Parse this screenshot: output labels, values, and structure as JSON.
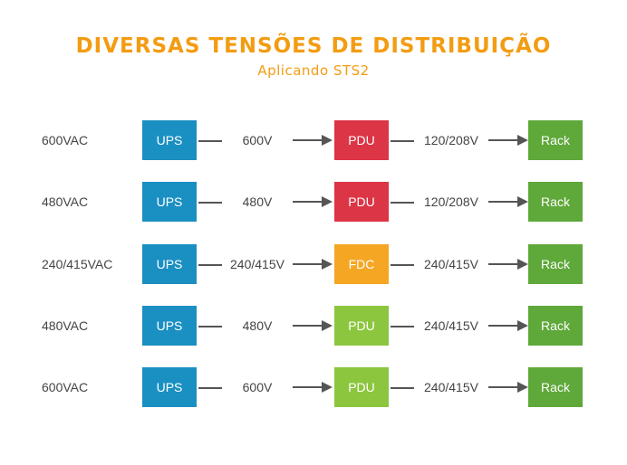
{
  "header": {
    "title": "DIVERSAS TENSÕES DE DISTRIBUIÇÃO",
    "subtitle": "Aplicando STS2"
  },
  "colors": {
    "accent": "#f39c12",
    "ups": "#1a8fc2",
    "pdu_red": "#dc3545",
    "fdc": "#f5a623",
    "pdu_green": "#8cc63f",
    "rack": "#5fa83a"
  },
  "rows": [
    {
      "source": "600VAC",
      "box1": "UPS",
      "label1": "600V",
      "box2": "PDU",
      "box2_color": "#dc3545",
      "label2": "120/208V",
      "box3": "Rack"
    },
    {
      "source": "480VAC",
      "box1": "UPS",
      "label1": "480V",
      "box2": "PDU",
      "box2_color": "#dc3545",
      "label2": "120/208V",
      "box3": "Rack"
    },
    {
      "source": "240/415VAC",
      "box1": "UPS",
      "label1": "240/415V",
      "box2": "FDC",
      "box2_color": "#f5a623",
      "label2": "240/415V",
      "box3": "Rack"
    },
    {
      "source": "480VAC",
      "box1": "UPS",
      "label1": "480V",
      "box2": "PDU",
      "box2_color": "#8cc63f",
      "label2": "240/415V",
      "box3": "Rack"
    },
    {
      "source": "600VAC",
      "box1": "UPS",
      "label1": "600V",
      "box2": "PDU",
      "box2_color": "#8cc63f",
      "label2": "240/415V",
      "box3": "Rack"
    }
  ]
}
